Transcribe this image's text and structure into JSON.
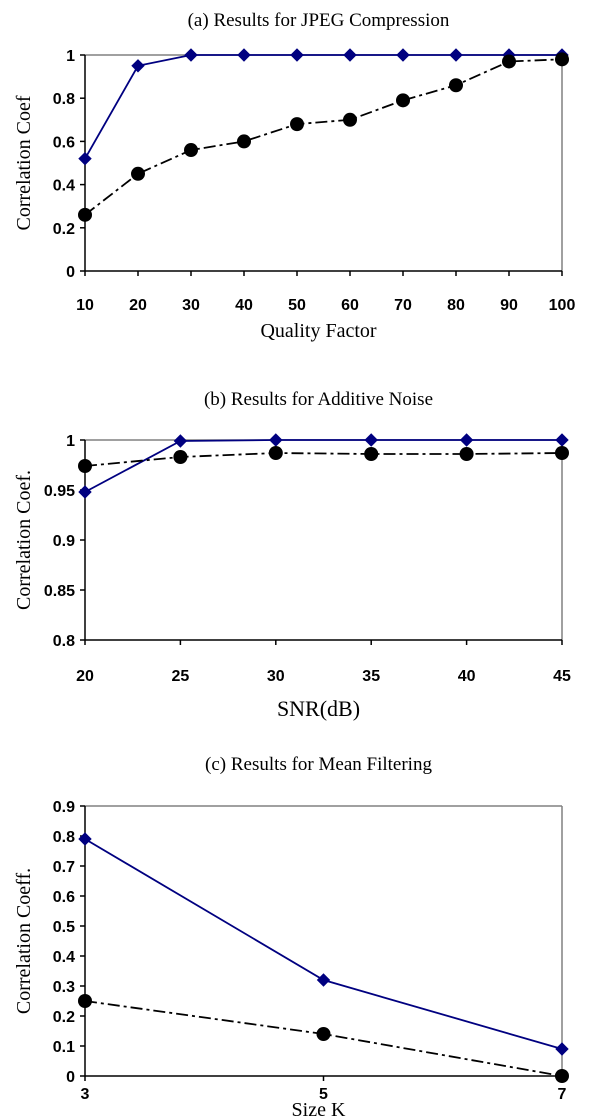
{
  "chart_data": [
    {
      "type": "line",
      "title": "(a) Results for JPEG Compression",
      "xlabel": "Quality Factor",
      "ylabel": "Correlation Coef",
      "x": [
        10,
        20,
        30,
        40,
        50,
        60,
        70,
        80,
        90,
        100
      ],
      "xticks": [
        "10",
        "20",
        "30",
        "40",
        "50",
        "60",
        "70",
        "80",
        "90",
        "100"
      ],
      "yticks": [
        "0",
        "0.2",
        "0.4",
        "0.6",
        "0.8",
        "1"
      ],
      "ylim": [
        0,
        1
      ],
      "grid": false,
      "series": [
        {
          "marker": "diamond",
          "style": "solid",
          "color": "#000080",
          "values": [
            0.52,
            0.95,
            1.0,
            1.0,
            1.0,
            1.0,
            1.0,
            1.0,
            1.0,
            1.0
          ]
        },
        {
          "marker": "circle",
          "style": "dash-dot",
          "color": "#000000",
          "values": [
            0.26,
            0.45,
            0.56,
            0.6,
            0.68,
            0.7,
            0.79,
            0.86,
            0.97,
            0.98
          ]
        }
      ]
    },
    {
      "type": "line",
      "title": "(b) Results for Additive Noise",
      "xlabel": "SNR(dB)",
      "ylabel": "Correlation Coef.",
      "x": [
        20,
        25,
        30,
        35,
        40,
        45
      ],
      "xticks": [
        "20",
        "25",
        "30",
        "35",
        "40",
        "45"
      ],
      "yticks": [
        "0.8",
        "0.85",
        "0.9",
        "0.95",
        "1"
      ],
      "ylim": [
        0.8,
        1
      ],
      "grid": false,
      "series": [
        {
          "marker": "diamond",
          "style": "solid",
          "color": "#000080",
          "values": [
            0.948,
            0.999,
            1.0,
            1.0,
            1.0,
            1.0
          ]
        },
        {
          "marker": "circle",
          "style": "dash-dot",
          "color": "#000000",
          "values": [
            0.974,
            0.983,
            0.987,
            0.986,
            0.986,
            0.987
          ]
        }
      ]
    },
    {
      "type": "line",
      "title": "(c) Results for Mean Filtering",
      "xlabel": "Size K",
      "ylabel": "Correlation Coeff.",
      "x": [
        3,
        5,
        7
      ],
      "xticks": [
        "3",
        "5",
        "7"
      ],
      "yticks": [
        "0",
        "0.1",
        "0.2",
        "0.3",
        "0.4",
        "0.5",
        "0.6",
        "0.7",
        "0.8",
        "0.9"
      ],
      "ylim": [
        0,
        0.9
      ],
      "grid": false,
      "series": [
        {
          "marker": "diamond",
          "style": "solid",
          "color": "#000080",
          "values": [
            0.79,
            0.32,
            0.09
          ]
        },
        {
          "marker": "circle",
          "style": "dash-dot",
          "color": "#000000",
          "values": [
            0.25,
            0.14,
            0.0
          ]
        }
      ]
    }
  ]
}
